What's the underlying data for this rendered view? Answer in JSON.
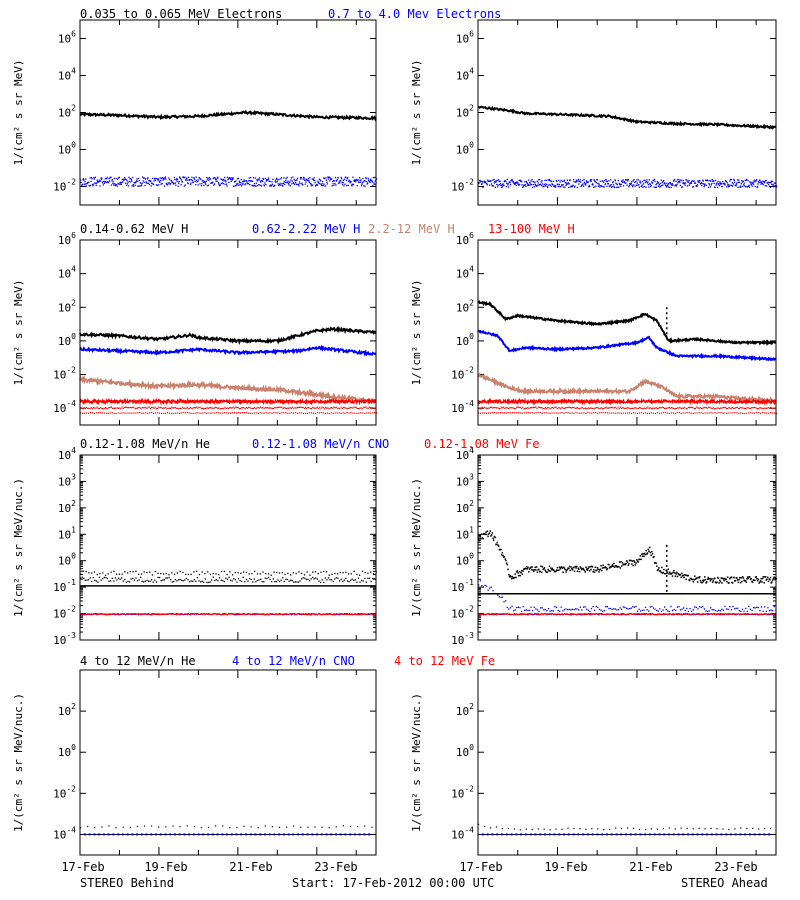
{
  "colors": {
    "black": "#000000",
    "blue": "#0000ff",
    "tan": "#c8826e",
    "red": "#ff0000"
  },
  "rows": [
    {
      "legend": [
        {
          "text": "0.035 to 0.065 MeV Electrons",
          "color": "#000000"
        },
        {
          "text": "0.7 to 4.0 Mev Electrons",
          "color": "#0000ff"
        }
      ],
      "ylabel": "1/(cm² s sr MeV)",
      "scale": "log10",
      "ylim": [
        -3,
        7
      ],
      "ticks": [
        {
          "base": "10",
          "exp": "6",
          "v": 6
        },
        {
          "base": "10",
          "exp": "4",
          "v": 4
        },
        {
          "base": "10",
          "exp": "2",
          "v": 2
        },
        {
          "base": "10",
          "exp": "0",
          "v": 0
        },
        {
          "base": "10",
          "exp": "-2",
          "v": -2
        }
      ],
      "has_minor": false
    },
    {
      "legend": [
        {
          "text": "0.14-0.62 MeV H",
          "color": "#000000"
        },
        {
          "text": "0.62-2.22 MeV H",
          "color": "#0000ff"
        },
        {
          "text": "2.2-12 MeV H",
          "color": "#c8826e"
        },
        {
          "text": "13-100 MeV H",
          "color": "#ff0000"
        }
      ],
      "ylabel": "1/(cm² s sr MeV)",
      "scale": "log10",
      "ylim": [
        -5,
        6
      ],
      "ticks": [
        {
          "base": "10",
          "exp": "6",
          "v": 6
        },
        {
          "base": "10",
          "exp": "4",
          "v": 4
        },
        {
          "base": "10",
          "exp": "2",
          "v": 2
        },
        {
          "base": "10",
          "exp": "0",
          "v": 0
        },
        {
          "base": "10",
          "exp": "-2",
          "v": -2
        },
        {
          "base": "10",
          "exp": "-4",
          "v": -4
        }
      ],
      "has_minor": false
    },
    {
      "legend": [
        {
          "text": "0.12-1.08 MeV/n He",
          "color": "#000000"
        },
        {
          "text": "0.12-1.08 MeV/n CNO",
          "color": "#0000ff"
        },
        {
          "text": "0.12-1.08 MeV Fe",
          "color": "#ff0000"
        }
      ],
      "ylabel": "1/(cm² s sr MeV/nuc.)",
      "scale": "log10",
      "ylim": [
        -3,
        4
      ],
      "ticks": [
        {
          "base": "10",
          "exp": "4",
          "v": 4
        },
        {
          "base": "10",
          "exp": "3",
          "v": 3
        },
        {
          "base": "10",
          "exp": "2",
          "v": 2
        },
        {
          "base": "10",
          "exp": "1",
          "v": 1
        },
        {
          "base": "10",
          "exp": "0",
          "v": 0
        },
        {
          "base": "10",
          "exp": "-1",
          "v": -1
        },
        {
          "base": "10",
          "exp": "-2",
          "v": -2
        },
        {
          "base": "10",
          "exp": "-3",
          "v": -3
        }
      ],
      "has_minor": true
    },
    {
      "legend": [
        {
          "text": "4 to 12 MeV/n He",
          "color": "#000000"
        },
        {
          "text": "4 to 12 MeV/n CNO",
          "color": "#0000ff"
        },
        {
          "text": "4 to 12 MeV Fe",
          "color": "#ff0000"
        }
      ],
      "ylabel": "1/(cm² s sr MeV/nuc.)",
      "scale": "log10",
      "ylim": [
        -5,
        4
      ],
      "ticks": [
        {
          "base": "10",
          "exp": "2",
          "v": 2
        },
        {
          "base": "10",
          "exp": "0",
          "v": 0
        },
        {
          "base": "10",
          "exp": "-2",
          "v": -2
        },
        {
          "base": "10",
          "exp": "-4",
          "v": -4
        }
      ],
      "has_minor": false
    }
  ],
  "x_ticks": [
    "17-Feb",
    "19-Feb",
    "21-Feb",
    "23-Feb"
  ],
  "x_range_days": [
    0,
    7.5
  ],
  "footer": {
    "left": "STEREO Behind",
    "center": "Start: 17-Feb-2012 00:00 UTC",
    "right": "STEREO Ahead"
  },
  "chart_data": [
    {
      "type": "scatter",
      "panel": "Behind electrons",
      "x": [
        0,
        1,
        2,
        3,
        4,
        5,
        6,
        7
      ],
      "series": [
        {
          "name": "0.035 to 0.065 MeV Electrons",
          "values": [
            1.9,
            1.85,
            1.75,
            1.8,
            2.0,
            1.9,
            1.75,
            1.7
          ]
        },
        {
          "name": "0.7 to 4.0 Mev Electrons",
          "values": [
            -1.7,
            -1.7,
            -1.7,
            -1.7,
            -1.7,
            -1.7,
            -1.7,
            -1.7
          ]
        }
      ]
    },
    {
      "type": "scatter",
      "panel": "Ahead electrons",
      "x": [
        0,
        1,
        2,
        3,
        4,
        5,
        6,
        7
      ],
      "series": [
        {
          "name": "0.035 to 0.065 MeV Electrons",
          "values": [
            2.3,
            2.0,
            1.9,
            1.8,
            1.4,
            1.4,
            1.35,
            1.3
          ]
        },
        {
          "name": "0.7 to 4.0 Mev Electrons",
          "values": [
            -1.8,
            -1.8,
            -1.8,
            -1.8,
            -1.8,
            -1.8,
            -1.8,
            -1.8
          ]
        }
      ]
    },
    {
      "type": "scatter",
      "panel": "Behind H",
      "x": [
        0,
        1,
        2,
        3,
        4,
        5,
        6,
        7
      ],
      "series": [
        {
          "name": "0.14-0.62 MeV H",
          "values": [
            0.4,
            0.3,
            0.1,
            0.3,
            0.0,
            0.0,
            0.7,
            0.5
          ]
        },
        {
          "name": "0.62-2.22 MeV H",
          "values": [
            -0.5,
            -0.6,
            -0.7,
            -0.5,
            -0.7,
            -0.6,
            -0.5,
            -0.8
          ]
        },
        {
          "name": "2.2-12 MeV H",
          "values": [
            -2.3,
            -2.5,
            -2.7,
            -2.6,
            -2.8,
            -2.9,
            -3.2,
            -3.6
          ]
        },
        {
          "name": "13-100 MeV H",
          "values": [
            -3.7,
            -3.75,
            -3.75,
            -3.75,
            -3.8,
            -3.8,
            -3.8,
            -3.8
          ]
        }
      ]
    },
    {
      "type": "scatter",
      "panel": "Ahead H",
      "x": [
        0,
        1,
        2,
        3,
        4,
        5,
        6,
        7
      ],
      "series": [
        {
          "name": "0.14-0.62 MeV H",
          "values": [
            2.3,
            1.3,
            1.0,
            1.0,
            1.3,
            0.0,
            0.0,
            -0.1
          ]
        },
        {
          "name": "0.62-2.22 MeV H",
          "values": [
            0.5,
            -0.5,
            -0.4,
            -0.3,
            -0.4,
            -0.9,
            -1.0,
            -1.0
          ]
        },
        {
          "name": "2.2-12 MeV H",
          "values": [
            -2.0,
            -3.0,
            -3.0,
            -3.0,
            -2.5,
            -3.3,
            -3.4,
            -3.6
          ]
        },
        {
          "name": "13-100 MeV H",
          "values": [
            -3.75,
            -3.75,
            -3.75,
            -3.75,
            -3.75,
            -3.75,
            -3.75,
            -3.75
          ]
        }
      ]
    },
    {
      "type": "scatter",
      "panel": "Behind He/CNO/Fe",
      "x": [
        0,
        1,
        2,
        3,
        4,
        5,
        6,
        7
      ],
      "series": [
        {
          "name": "0.12-1.08 MeV/n He",
          "values": [
            -0.7,
            -0.7,
            -0.7,
            -0.6,
            -0.7,
            -0.7,
            -0.4,
            -0.7
          ]
        },
        {
          "name": "0.12-1.08 MeV/n CNO",
          "values": [
            -2,
            -2,
            -2,
            -2,
            -2,
            -2,
            -2,
            -2
          ]
        },
        {
          "name": "0.12-1.08 MeV Fe",
          "values": [
            -2,
            -2,
            -2,
            -2,
            -2,
            -2,
            -2,
            -2
          ]
        }
      ]
    },
    {
      "type": "scatter",
      "panel": "Ahead He/CNO/Fe",
      "x": [
        0,
        1,
        2,
        3,
        4,
        5,
        6,
        7
      ],
      "series": [
        {
          "name": "0.12-1.08 MeV/n He",
          "values": [
            1.0,
            -0.5,
            -0.3,
            -0.3,
            0.2,
            -0.6,
            -0.7,
            -0.7
          ]
        },
        {
          "name": "0.12-1.08 MeV/n CNO",
          "values": [
            -0.8,
            -1.8,
            -1.8,
            -1.8,
            -1.8,
            -1.8,
            -1.8,
            -1.8
          ]
        },
        {
          "name": "0.12-1.08 MeV Fe",
          "values": [
            -2,
            -2,
            -2,
            -2,
            -2,
            -2,
            -2,
            -2
          ]
        }
      ]
    },
    {
      "type": "scatter",
      "panel": "Behind 4-12 MeV",
      "x": [
        0,
        1,
        2,
        3,
        4,
        5,
        6,
        7
      ],
      "series": [
        {
          "name": "4 to 12 MeV/n He",
          "values": [
            -4,
            -4,
            -4,
            -4,
            -4,
            -4,
            -4,
            -4
          ]
        },
        {
          "name": "4 to 12 MeV/n CNO",
          "values": [
            -4,
            -4,
            -4,
            -4,
            -4,
            -4,
            -4,
            -4
          ]
        }
      ]
    },
    {
      "type": "scatter",
      "panel": "Ahead 4-12 MeV",
      "x": [
        0,
        1,
        2,
        3,
        4,
        5,
        6,
        7
      ],
      "series": [
        {
          "name": "4 to 12 MeV/n He",
          "values": [
            -4,
            -4,
            -4,
            -4,
            -4,
            -4,
            -4,
            -4
          ]
        },
        {
          "name": "4 to 12 MeV/n CNO",
          "values": [
            -4,
            -4,
            -4,
            -4,
            -4,
            -4,
            -4,
            -4
          ]
        }
      ]
    }
  ]
}
